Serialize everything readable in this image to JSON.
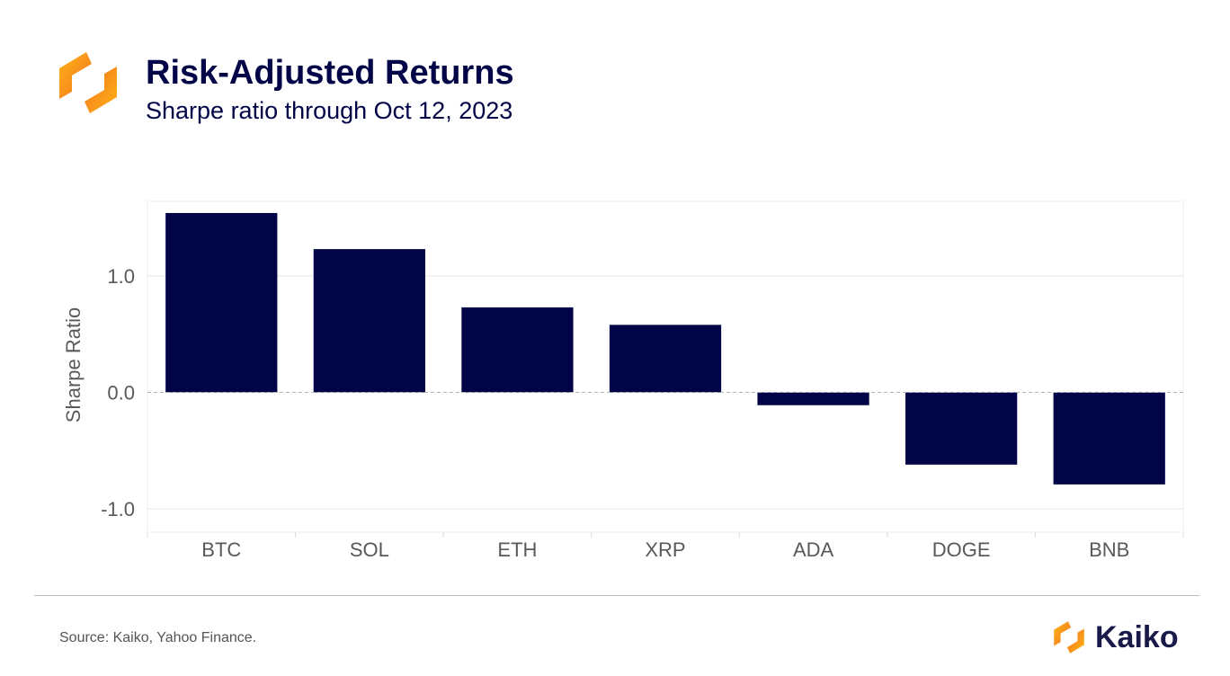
{
  "header": {
    "logo_icon": "kaiko-logo-icon",
    "title": "Risk-Adjusted Returns",
    "subtitle": "Sharpe ratio through Oct 12, 2023"
  },
  "chart_data": {
    "type": "bar",
    "title": "Risk-Adjusted Returns",
    "subtitle": "Sharpe ratio through Oct 12, 2023",
    "xlabel": "",
    "ylabel": "Sharpe Ratio",
    "categories": [
      "BTC",
      "SOL",
      "ETH",
      "XRP",
      "ADA",
      "DOGE",
      "BNB"
    ],
    "values": [
      1.54,
      1.23,
      0.73,
      0.58,
      -0.11,
      -0.62,
      -0.79
    ],
    "ylim": [
      -1.2,
      1.64
    ],
    "yticks": [
      1.0,
      0.0,
      -1.0
    ],
    "ytick_labels": [
      "1.0",
      "0.0",
      "-1.0"
    ],
    "grid": true,
    "zero_line": "dashed",
    "bar_color": "#010446"
  },
  "footer": {
    "source": "Source: Kaiko, Yahoo Finance.",
    "brand_icon": "kaiko-logo-icon",
    "brand_name": "Kaiko"
  },
  "colors": {
    "navy": "#010446",
    "orange_light": "#FDB515",
    "orange_dark": "#F37021",
    "axis_text": "#595959",
    "grid": "#e6e6e6"
  }
}
